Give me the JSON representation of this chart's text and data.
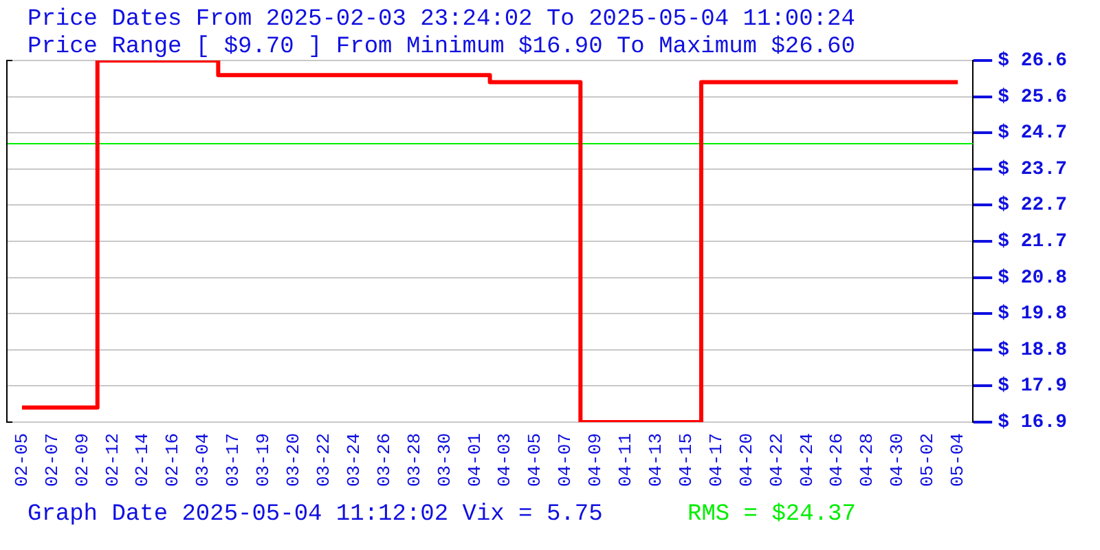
{
  "chart_data": {
    "type": "step",
    "title": "Price Dates From 2025-02-03 23:24:02 To 2025-05-04 11:00:24",
    "subtitle": "Price Range [ $9.70 ] From Minimum $16.90 To Maximum $26.60",
    "categories": [
      "02-05",
      "02-07",
      "02-09",
      "02-12",
      "02-14",
      "02-16",
      "03-04",
      "03-17",
      "03-19",
      "03-20",
      "03-22",
      "03-24",
      "03-26",
      "03-28",
      "03-30",
      "04-01",
      "04-03",
      "04-05",
      "04-07",
      "04-09",
      "04-11",
      "04-13",
      "04-15",
      "04-17",
      "04-20",
      "04-22",
      "04-24",
      "04-26",
      "04-28",
      "04-30",
      "05-02",
      "05-04"
    ],
    "series": [
      {
        "color": "#ff0000",
        "values": [
          17.29,
          17.29,
          17.29,
          26.6,
          26.6,
          26.6,
          26.6,
          26.21,
          26.21,
          26.21,
          26.21,
          26.21,
          26.21,
          26.21,
          26.21,
          26.21,
          26.02,
          26.02,
          26.02,
          16.9,
          16.9,
          16.9,
          16.9,
          26.02,
          26.02,
          26.02,
          26.02,
          26.02,
          26.02,
          26.02,
          26.02,
          26.02
        ]
      }
    ],
    "ylim": [
      16.9,
      26.6
    ],
    "yticks": [
      {
        "value": 16.9,
        "label": "$ 16.9"
      },
      {
        "value": 17.87,
        "label": "$ 17.9"
      },
      {
        "value": 18.84,
        "label": "$ 18.8"
      },
      {
        "value": 19.81,
        "label": "$ 19.8"
      },
      {
        "value": 20.78,
        "label": "$ 20.8"
      },
      {
        "value": 21.75,
        "label": "$ 21.7"
      },
      {
        "value": 22.72,
        "label": "$ 22.7"
      },
      {
        "value": 23.69,
        "label": "$ 23.7"
      },
      {
        "value": 24.66,
        "label": "$ 24.7"
      },
      {
        "value": 25.63,
        "label": "$ 25.6"
      },
      {
        "value": 26.6,
        "label": "$ 26.6"
      }
    ],
    "ref_lines": [
      {
        "axis": "y",
        "value": 24.37,
        "label": "RMS = $24.37",
        "color": "#00ee00"
      }
    ],
    "annotations": [
      "Graph Date 2025-05-04 11:12:02 Vix = 5.75"
    ],
    "grid": "y",
    "legend": false
  }
}
